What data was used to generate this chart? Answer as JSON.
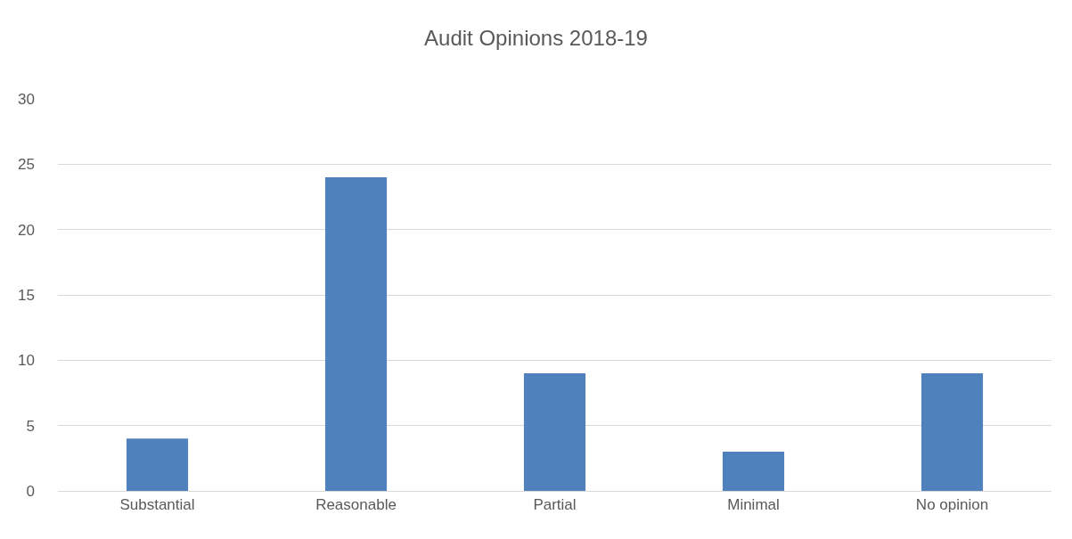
{
  "chart_data": {
    "type": "bar",
    "title": "Audit Opinions 2018-19",
    "categories": [
      "Substantial",
      "Reasonable",
      "Partial",
      "Minimal",
      "No opinion"
    ],
    "values": [
      4,
      24,
      9,
      3,
      9
    ],
    "color": "#4f81bd",
    "ylim": [
      0,
      30
    ],
    "yticks": [
      0,
      5,
      10,
      15,
      20,
      25,
      30
    ],
    "grid": "y",
    "legend": false
  }
}
